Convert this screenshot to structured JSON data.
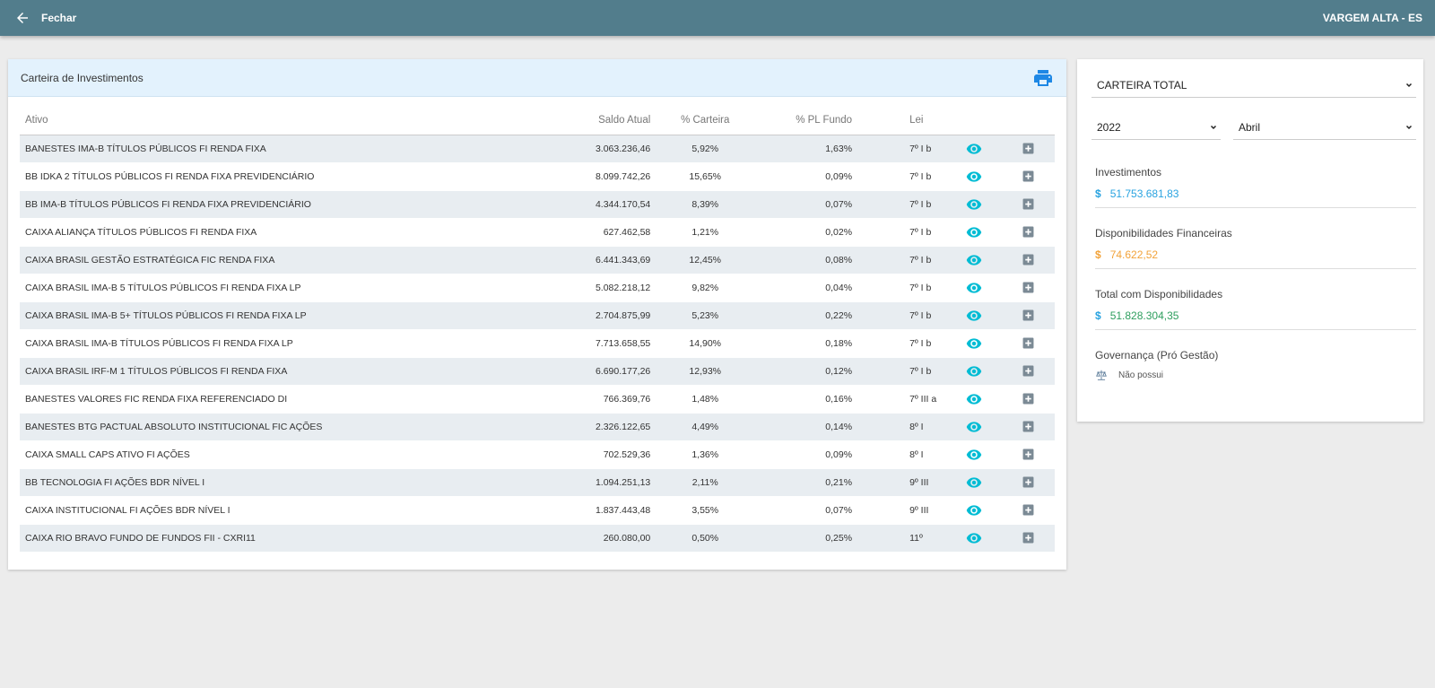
{
  "topbar": {
    "back_label": "Fechar",
    "location": "VARGEM ALTA - ES",
    "bg_color": "#527d8c"
  },
  "portfolio": {
    "title": "Carteira de Investimentos",
    "print_icon": "printer-icon",
    "columns": {
      "ativo": "Ativo",
      "saldo": "Saldo Atual",
      "carteira": "% Carteira",
      "pl": "% PL Fundo",
      "lei": "Lei"
    },
    "rows": [
      {
        "ativo": "BANESTES IMA-B TÍTULOS PÚBLICOS FI RENDA FIXA",
        "saldo": "3.063.236,46",
        "carteira": "5,92%",
        "pl": "1,63%",
        "lei": "7º I b"
      },
      {
        "ativo": "BB IDKA 2 TÍTULOS PÚBLICOS FI RENDA FIXA PREVIDENCIÁRIO",
        "saldo": "8.099.742,26",
        "carteira": "15,65%",
        "pl": "0,09%",
        "lei": "7º I b"
      },
      {
        "ativo": "BB IMA-B TÍTULOS PÚBLICOS FI RENDA FIXA PREVIDENCIÁRIO",
        "saldo": "4.344.170,54",
        "carteira": "8,39%",
        "pl": "0,07%",
        "lei": "7º I b"
      },
      {
        "ativo": "CAIXA ALIANÇA TÍTULOS PÚBLICOS FI RENDA FIXA",
        "saldo": "627.462,58",
        "carteira": "1,21%",
        "pl": "0,02%",
        "lei": "7º I b"
      },
      {
        "ativo": "CAIXA BRASIL GESTÃO ESTRATÉGICA FIC RENDA FIXA",
        "saldo": "6.441.343,69",
        "carteira": "12,45%",
        "pl": "0,08%",
        "lei": "7º I b"
      },
      {
        "ativo": "CAIXA BRASIL IMA-B 5 TÍTULOS PÚBLICOS FI RENDA FIXA LP",
        "saldo": "5.082.218,12",
        "carteira": "9,82%",
        "pl": "0,04%",
        "lei": "7º I b"
      },
      {
        "ativo": "CAIXA BRASIL IMA-B 5+ TÍTULOS PÚBLICOS FI RENDA FIXA LP",
        "saldo": "2.704.875,99",
        "carteira": "5,23%",
        "pl": "0,22%",
        "lei": "7º I b"
      },
      {
        "ativo": "CAIXA BRASIL IMA-B TÍTULOS PÚBLICOS FI RENDA FIXA LP",
        "saldo": "7.713.658,55",
        "carteira": "14,90%",
        "pl": "0,18%",
        "lei": "7º I b"
      },
      {
        "ativo": "CAIXA BRASIL IRF-M 1 TÍTULOS PÚBLICOS FI RENDA FIXA",
        "saldo": "6.690.177,26",
        "carteira": "12,93%",
        "pl": "0,12%",
        "lei": "7º I b"
      },
      {
        "ativo": "BANESTES VALORES FIC RENDA FIXA REFERENCIADO DI",
        "saldo": "766.369,76",
        "carteira": "1,48%",
        "pl": "0,16%",
        "lei": "7º III a"
      },
      {
        "ativo": "BANESTES BTG PACTUAL ABSOLUTO INSTITUCIONAL FIC AÇÕES",
        "saldo": "2.326.122,65",
        "carteira": "4,49%",
        "pl": "0,14%",
        "lei": "8º I"
      },
      {
        "ativo": "CAIXA SMALL CAPS ATIVO FI AÇÕES",
        "saldo": "702.529,36",
        "carteira": "1,36%",
        "pl": "0,09%",
        "lei": "8º I"
      },
      {
        "ativo": "BB TECNOLOGIA FI AÇÕES BDR NÍVEL I",
        "saldo": "1.094.251,13",
        "carteira": "2,11%",
        "pl": "0,21%",
        "lei": "9º III"
      },
      {
        "ativo": "CAIXA INSTITUCIONAL FI AÇÕES BDR NÍVEL I",
        "saldo": "1.837.443,48",
        "carteira": "3,55%",
        "pl": "0,07%",
        "lei": "9º III"
      },
      {
        "ativo": "CAIXA RIO BRAVO FUNDO DE FUNDOS FII - CXRI11",
        "saldo": "260.080,00",
        "carteira": "0,50%",
        "pl": "0,25%",
        "lei": "11º"
      }
    ]
  },
  "summary": {
    "portfolio_select": "CARTEIRA TOTAL",
    "year_select": "2022",
    "month_select": "Abril",
    "investimentos": {
      "label": "Investimentos",
      "symbol": "$",
      "value": "51.753.681,83",
      "color": "#29a3e0"
    },
    "disponibilidades": {
      "label": "Disponibilidades Financeiras",
      "symbol": "$",
      "value": "74.622,52",
      "color": "#f2a33a"
    },
    "total": {
      "label": "Total com Disponibilidades",
      "symbol": "$",
      "value": "51.828.304,35",
      "color": "#2e9e5e"
    },
    "governanca": {
      "label": "Governança (Pró Gestão)",
      "value": "Não possui"
    }
  }
}
